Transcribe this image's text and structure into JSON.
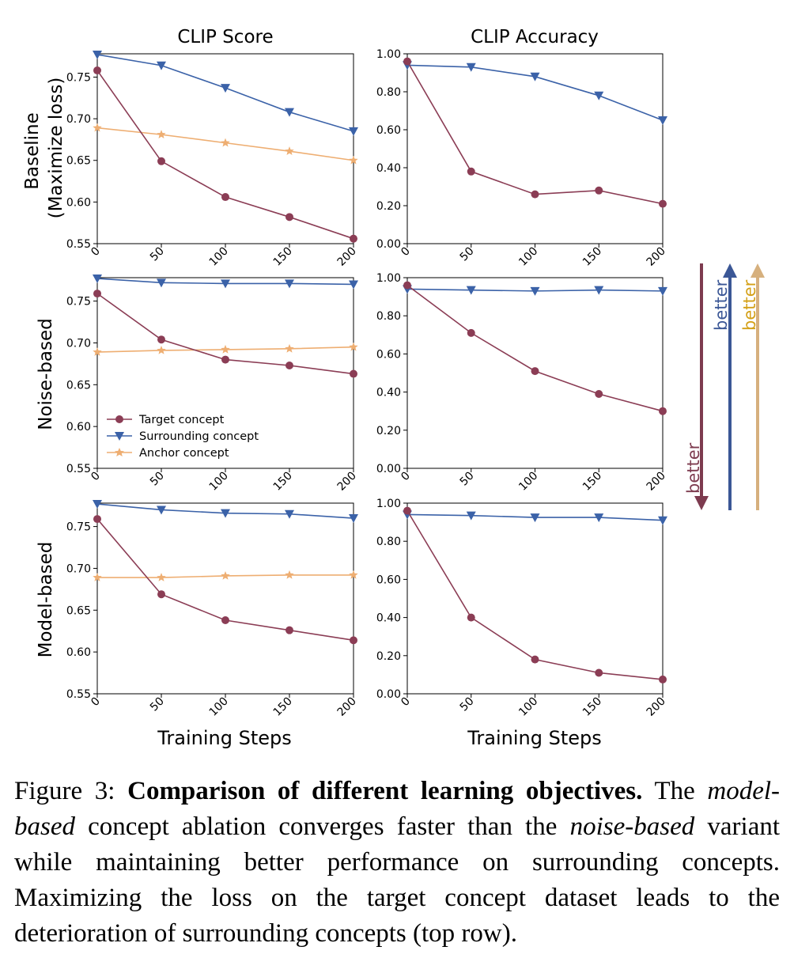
{
  "figure": {
    "col_titles": [
      "CLIP Score",
      "CLIP Accuracy"
    ],
    "row_labels": [
      [
        "Baseline",
        "(Maximize loss)"
      ],
      [
        "Noise-based"
      ],
      [
        "Model-based"
      ]
    ],
    "xlabel": "Training Steps",
    "legend": {
      "placement": "lower-left of middle-left panel",
      "entries": [
        "Target concept",
        "Surrounding concept",
        "Anchor concept"
      ]
    },
    "arrows": [
      {
        "label": "better",
        "direction": "down",
        "color": "#7d3b4f"
      },
      {
        "label": "better",
        "direction": "up",
        "color": "#3b5796"
      },
      {
        "label": "better",
        "direction": "up",
        "color": "#d6b07e",
        "label_color": "#d4a017"
      }
    ],
    "colors": {
      "target": "#8b3d55",
      "surrounding": "#3b62a8",
      "anchor": "#eeae72"
    }
  },
  "chart_data": [
    {
      "type": "line",
      "title": "CLIP Score",
      "row_label": "Baseline (Maximize loss)",
      "xlabel": "",
      "ylabel": "",
      "x": [
        0,
        50,
        100,
        150,
        200
      ],
      "xlim": [
        0,
        200
      ],
      "ylim": [
        0.55,
        0.778
      ],
      "xticks": [
        "0",
        "50",
        "100",
        "150",
        "200"
      ],
      "yticks": [
        "0.55",
        "0.60",
        "0.65",
        "0.70",
        "0.75"
      ],
      "series": [
        {
          "name": "Target concept",
          "values": [
            0.758,
            0.649,
            0.606,
            0.582,
            0.556
          ]
        },
        {
          "name": "Surrounding concept",
          "values": [
            0.777,
            0.764,
            0.737,
            0.708,
            0.685
          ]
        },
        {
          "name": "Anchor concept",
          "values": [
            0.689,
            0.681,
            0.671,
            0.661,
            0.65
          ]
        }
      ]
    },
    {
      "type": "line",
      "title": "CLIP Accuracy",
      "row_label": "Baseline (Maximize loss)",
      "xlabel": "",
      "ylabel": "",
      "x": [
        0,
        50,
        100,
        150,
        200
      ],
      "xlim": [
        0,
        200
      ],
      "ylim": [
        0,
        1.0
      ],
      "xticks": [
        "0",
        "50",
        "100",
        "150",
        "200"
      ],
      "yticks": [
        "0.00",
        "0.20",
        "0.40",
        "0.60",
        "0.80",
        "1.00"
      ],
      "series": [
        {
          "name": "Target concept",
          "values": [
            0.96,
            0.38,
            0.26,
            0.28,
            0.21
          ]
        },
        {
          "name": "Surrounding concept",
          "values": [
            0.94,
            0.93,
            0.88,
            0.78,
            0.65
          ]
        }
      ]
    },
    {
      "type": "line",
      "title": "CLIP Score",
      "row_label": "Noise-based",
      "xlabel": "",
      "ylabel": "",
      "x": [
        0,
        50,
        100,
        150,
        200
      ],
      "xlim": [
        0,
        200
      ],
      "ylim": [
        0.55,
        0.778
      ],
      "xticks": [
        "0",
        "50",
        "100",
        "150",
        "200"
      ],
      "yticks": [
        "0.55",
        "0.60",
        "0.65",
        "0.70",
        "0.75"
      ],
      "series": [
        {
          "name": "Target concept",
          "values": [
            0.759,
            0.704,
            0.68,
            0.673,
            0.663
          ]
        },
        {
          "name": "Surrounding concept",
          "values": [
            0.777,
            0.772,
            0.771,
            0.771,
            0.77
          ]
        },
        {
          "name": "Anchor concept",
          "values": [
            0.689,
            0.691,
            0.692,
            0.693,
            0.695
          ]
        }
      ]
    },
    {
      "type": "line",
      "title": "CLIP Accuracy",
      "row_label": "Noise-based",
      "xlabel": "",
      "ylabel": "",
      "x": [
        0,
        50,
        100,
        150,
        200
      ],
      "xlim": [
        0,
        200
      ],
      "ylim": [
        0,
        1.0
      ],
      "xticks": [
        "0",
        "50",
        "100",
        "150",
        "200"
      ],
      "yticks": [
        "0.00",
        "0.20",
        "0.40",
        "0.60",
        "0.80",
        "1.00"
      ],
      "series": [
        {
          "name": "Target concept",
          "values": [
            0.96,
            0.71,
            0.51,
            0.39,
            0.3
          ]
        },
        {
          "name": "Surrounding concept",
          "values": [
            0.94,
            0.935,
            0.93,
            0.935,
            0.93
          ]
        }
      ]
    },
    {
      "type": "line",
      "title": "CLIP Score",
      "row_label": "Model-based",
      "xlabel": "Training Steps",
      "ylabel": "",
      "x": [
        0,
        50,
        100,
        150,
        200
      ],
      "xlim": [
        0,
        200
      ],
      "ylim": [
        0.55,
        0.778
      ],
      "xticks": [
        "0",
        "50",
        "100",
        "150",
        "200"
      ],
      "yticks": [
        "0.55",
        "0.60",
        "0.65",
        "0.70",
        "0.75"
      ],
      "series": [
        {
          "name": "Target concept",
          "values": [
            0.759,
            0.669,
            0.638,
            0.626,
            0.614
          ]
        },
        {
          "name": "Surrounding concept",
          "values": [
            0.777,
            0.77,
            0.766,
            0.765,
            0.76
          ]
        },
        {
          "name": "Anchor concept",
          "values": [
            0.689,
            0.689,
            0.691,
            0.692,
            0.692
          ]
        }
      ]
    },
    {
      "type": "line",
      "title": "CLIP Accuracy",
      "row_label": "Model-based",
      "xlabel": "Training Steps",
      "ylabel": "",
      "x": [
        0,
        50,
        100,
        150,
        200
      ],
      "xlim": [
        0,
        200
      ],
      "ylim": [
        0,
        1.0
      ],
      "xticks": [
        "0",
        "50",
        "100",
        "150",
        "200"
      ],
      "yticks": [
        "0.00",
        "0.20",
        "0.40",
        "0.60",
        "0.80",
        "1.00"
      ],
      "series": [
        {
          "name": "Target concept",
          "values": [
            0.96,
            0.4,
            0.18,
            0.11,
            0.075
          ]
        },
        {
          "name": "Surrounding concept",
          "values": [
            0.94,
            0.935,
            0.925,
            0.925,
            0.91
          ]
        }
      ]
    }
  ],
  "caption": {
    "label": "Figure 3:",
    "bold": "Comparison of different learning objectives.",
    "t1": "The",
    "i1": "model-based",
    "t2": "concept ablation converges faster than the",
    "i2": "noise-based",
    "t3": "variant while maintaining better performance on surrounding concepts. Maximizing the loss on the target concept dataset leads to the deterioration of surrounding concepts (top row)."
  }
}
